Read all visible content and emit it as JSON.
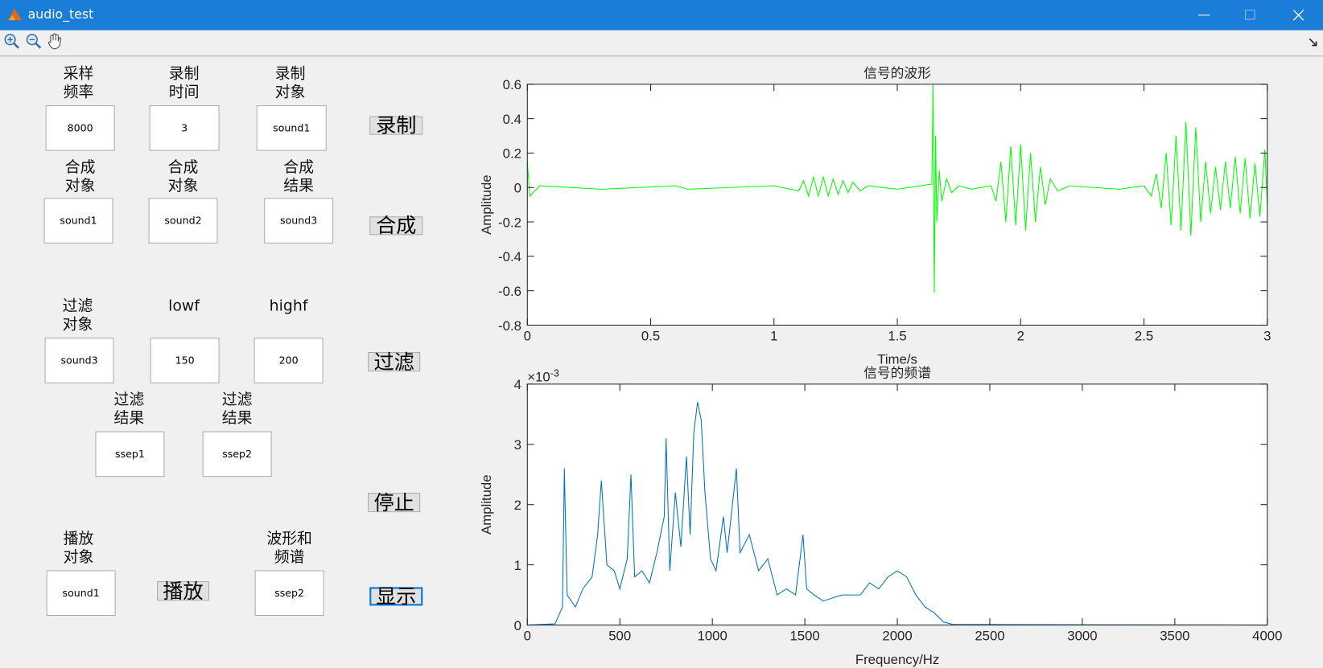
{
  "window": {
    "title": "audio_test"
  },
  "labels": [
    "采样\n频率",
    "录制\n时间",
    "录制\n对象",
    "合成\n对象",
    "合成\n对象",
    "合成\n结果",
    "过滤\n对象",
    "lowf",
    "highf",
    "过滤\n结果",
    "过滤\n结果",
    "播放\n对象",
    "波形和\n频谱"
  ],
  "edits": [
    "8000",
    "3",
    "sound1",
    "sound1",
    "sound2",
    "sound3",
    "sound3",
    "150",
    "200",
    "ssep1",
    "ssep2",
    "sound1",
    "ssep2"
  ],
  "buttons": [
    "录制",
    "合成",
    "过滤",
    "停止",
    "播放",
    "显示"
  ],
  "chart_data": [
    {
      "type": "line",
      "title": "信号的波形",
      "x_label": "Time/s",
      "y_label": "Amplitude",
      "color": "#00ff00",
      "xlim": [
        0,
        3
      ],
      "xticks": [
        0,
        0.5,
        1,
        1.5,
        2,
        2.5,
        3
      ],
      "ylim": [
        -0.8,
        0.6
      ],
      "yticks": [
        -0.8,
        -0.6,
        -0.4,
        -0.2,
        0,
        0.2,
        0.4,
        0.6
      ],
      "x": [
        0,
        0.01,
        0.05,
        0.3,
        0.6,
        0.65,
        1.0,
        1.1,
        1.12,
        1.14,
        1.16,
        1.18,
        1.2,
        1.22,
        1.24,
        1.26,
        1.28,
        1.3,
        1.32,
        1.35,
        1.38,
        1.5,
        1.64,
        1.645,
        1.65,
        1.655,
        1.66,
        1.67,
        1.68,
        1.7,
        1.72,
        1.75,
        1.8,
        1.88,
        1.9,
        1.92,
        1.94,
        1.96,
        1.98,
        2.0,
        2.02,
        2.04,
        2.06,
        2.08,
        2.1,
        2.12,
        2.15,
        2.2,
        2.4,
        2.5,
        2.53,
        2.55,
        2.57,
        2.59,
        2.61,
        2.63,
        2.65,
        2.67,
        2.69,
        2.71,
        2.73,
        2.75,
        2.77,
        2.79,
        2.81,
        2.83,
        2.85,
        2.87,
        2.89,
        2.91,
        2.93,
        2.95,
        2.97,
        2.99,
        3.0
      ],
      "values": [
        0.15,
        -0.05,
        0.01,
        -0.01,
        0.01,
        -0.01,
        0.01,
        -0.02,
        0.04,
        -0.05,
        0.06,
        -0.05,
        0.06,
        -0.05,
        0.05,
        -0.04,
        0.04,
        -0.03,
        0.03,
        -0.02,
        0.01,
        -0.01,
        0.02,
        0.6,
        -0.61,
        0.3,
        -0.2,
        0.1,
        -0.08,
        0.05,
        -0.03,
        0.01,
        -0.01,
        0.01,
        -0.08,
        0.15,
        -0.2,
        0.24,
        -0.22,
        0.25,
        -0.25,
        0.2,
        -0.2,
        0.12,
        -0.1,
        0.05,
        -0.02,
        0.01,
        -0.01,
        0.01,
        -0.05,
        0.08,
        -0.12,
        0.2,
        -0.22,
        0.3,
        -0.25,
        0.38,
        -0.28,
        0.35,
        -0.2,
        0.15,
        -0.15,
        0.12,
        -0.13,
        0.15,
        -0.12,
        0.18,
        -0.15,
        0.17,
        -0.18,
        0.14,
        -0.17,
        0.22,
        -0.1
      ]
    },
    {
      "type": "line",
      "title": "信号的频谱",
      "x_label": "Frequency/Hz",
      "y_label": "Amplitude",
      "color": "#0072bd",
      "y_multiplier": {
        "base": "×10",
        "exponent": "-3"
      },
      "xlim": [
        0,
        4000
      ],
      "xticks": [
        0,
        500,
        1000,
        1500,
        2000,
        2500,
        3000,
        3500,
        4000
      ],
      "ylim": [
        0,
        0.004
      ],
      "yticks": [
        0,
        {
          "value": 0.001,
          "label": "1"
        },
        {
          "value": 0.002,
          "label": "2"
        },
        {
          "value": 0.003,
          "label": "3"
        },
        {
          "value": 0.004,
          "label": "4"
        }
      ],
      "x": [
        0,
        150,
        190,
        200,
        215,
        260,
        300,
        350,
        380,
        400,
        430,
        470,
        500,
        540,
        560,
        580,
        620,
        660,
        700,
        740,
        750,
        770,
        800,
        830,
        860,
        880,
        900,
        920,
        940,
        960,
        990,
        1020,
        1060,
        1080,
        1130,
        1150,
        1200,
        1250,
        1300,
        1350,
        1400,
        1450,
        1490,
        1510,
        1550,
        1600,
        1700,
        1800,
        1850,
        1900,
        1950,
        2000,
        2050,
        2100,
        2150,
        2200,
        2250,
        2300,
        4000
      ],
      "values": [
        0,
        2e-05,
        0.0003,
        0.0026,
        0.0005,
        0.0003,
        0.0006,
        0.0008,
        0.0015,
        0.0024,
        0.001,
        0.0009,
        0.0006,
        0.0011,
        0.0025,
        0.0008,
        0.0009,
        0.0007,
        0.0012,
        0.0018,
        0.0031,
        0.0009,
        0.0022,
        0.0013,
        0.0028,
        0.0015,
        0.0032,
        0.0037,
        0.0034,
        0.0022,
        0.0011,
        0.0009,
        0.0018,
        0.0012,
        0.0026,
        0.0012,
        0.0015,
        0.0009,
        0.0011,
        0.0005,
        0.0006,
        0.0005,
        0.0015,
        0.0006,
        0.0005,
        0.0004,
        0.0005,
        0.0005,
        0.0007,
        0.0006,
        0.0008,
        0.0009,
        0.0008,
        0.0005,
        0.0003,
        0.0002,
        5e-05,
        1e-05,
        0
      ]
    }
  ]
}
